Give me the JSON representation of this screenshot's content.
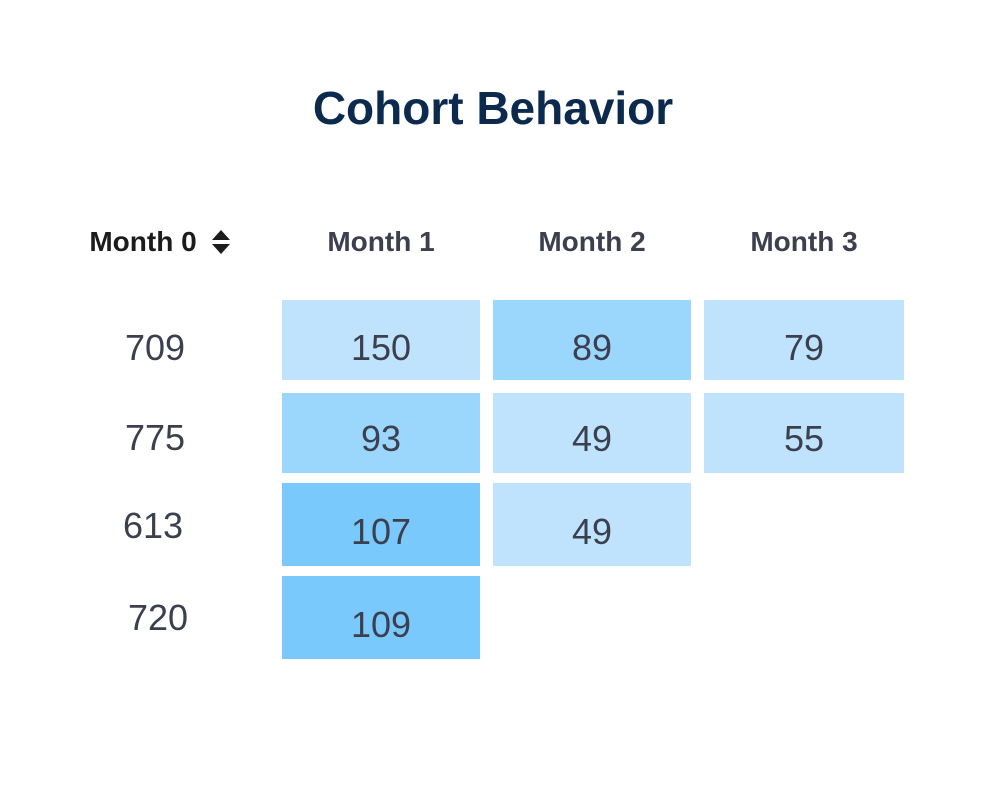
{
  "chart_data": {
    "type": "table",
    "title": "Cohort Behavior",
    "columns": [
      "Month 0",
      "Month 1",
      "Month 2",
      "Month 3"
    ],
    "sort_column": "Month 0",
    "rows": [
      {
        "month0": "709",
        "values": [
          "150",
          "89",
          "79"
        ]
      },
      {
        "month0": "775",
        "values": [
          "93",
          "49",
          "55"
        ]
      },
      {
        "month0": "613",
        "values": [
          "107",
          "49"
        ]
      },
      {
        "month0": "720",
        "values": [
          "109"
        ]
      }
    ],
    "colors": {
      "title": "#0b2a4e",
      "text": "#3c3f4d",
      "cell_light": "#bfe3fd",
      "cell_medium": "#9bd6fd",
      "cell_dark": "#79c9fd"
    }
  }
}
